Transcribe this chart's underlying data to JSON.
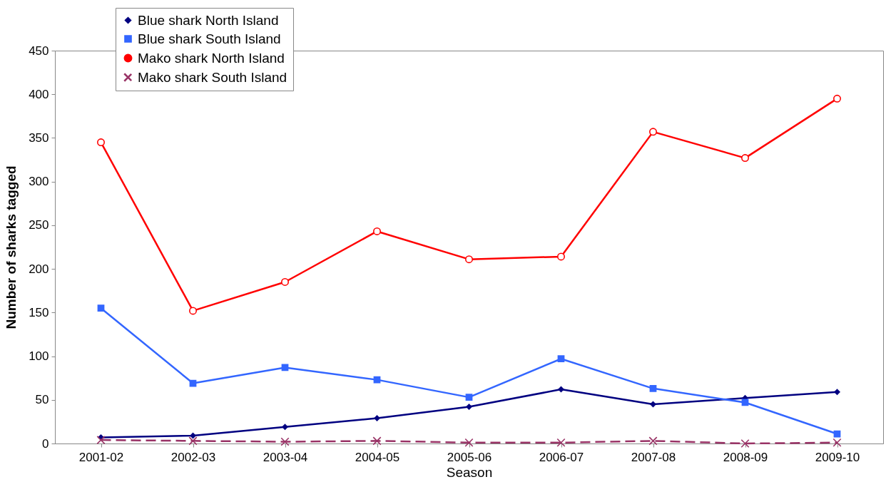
{
  "chart_data": {
    "type": "line",
    "xlabel": "Season",
    "ylabel": "Number of sharks tagged",
    "categories": [
      "2001-02",
      "2002-03",
      "2003-04",
      "2004-05",
      "2005-06",
      "2006-07",
      "2007-08",
      "2008-09",
      "2009-10"
    ],
    "series": [
      {
        "name": "Blue shark North Island",
        "color": "#000080",
        "marker": "diamond",
        "line_style": "solid",
        "values": [
          7,
          9,
          19,
          29,
          42,
          62,
          45,
          52,
          59
        ]
      },
      {
        "name": "Blue shark South Island",
        "color": "#3366ff",
        "marker": "square",
        "line_style": "solid",
        "values": [
          155,
          69,
          87,
          73,
          53,
          97,
          63,
          47,
          11
        ]
      },
      {
        "name": "Mako shark North Island",
        "color": "#ff0000",
        "marker": "circle",
        "line_style": "solid",
        "values": [
          345,
          152,
          185,
          243,
          211,
          214,
          357,
          327,
          395
        ]
      },
      {
        "name": "Mako shark South Island",
        "color": "#993366",
        "marker": "cross",
        "line_style": "dashed",
        "values": [
          4,
          3,
          2,
          3,
          1,
          1,
          3,
          0,
          1
        ]
      }
    ],
    "ylim": [
      0,
      450
    ],
    "yticks": [
      0,
      50,
      100,
      150,
      200,
      250,
      300,
      350,
      400,
      450
    ],
    "grid": false,
    "legend": "top left"
  }
}
